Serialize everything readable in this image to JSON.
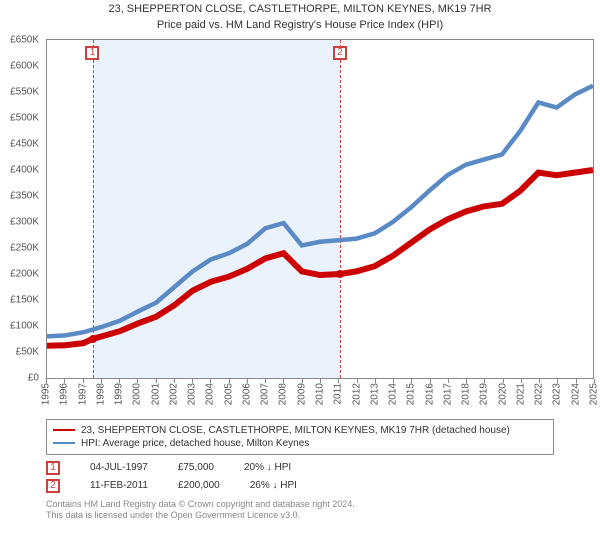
{
  "title": {
    "line1": "23, SHEPPERTON CLOSE, CASTLETHORPE, MILTON KEYNES, MK19 7HR",
    "line2": "Price paid vs. HM Land Registry's House Price Index (HPI)",
    "fontsize": 12,
    "color": "#333333"
  },
  "chart": {
    "type": "line",
    "background_color": "#ffffff",
    "plot_border_color": "#888888",
    "shade_color": "#eaf2fb",
    "shade_from_year": 1997.5,
    "shade_to_year": 2011.1,
    "x": {
      "min": 1995,
      "max": 2025,
      "ticks": [
        1995,
        1996,
        1997,
        1998,
        1999,
        2000,
        2001,
        2002,
        2003,
        2004,
        2005,
        2006,
        2007,
        2008,
        2009,
        2010,
        2011,
        2012,
        2013,
        2014,
        2015,
        2016,
        2017,
        2018,
        2019,
        2020,
        2021,
        2022,
        2023,
        2024,
        2025
      ]
    },
    "y": {
      "min": 0,
      "max": 650000,
      "prefix": "£",
      "suffix": "K",
      "ticks": [
        0,
        50000,
        100000,
        150000,
        200000,
        250000,
        300000,
        350000,
        400000,
        450000,
        500000,
        550000,
        600000,
        650000
      ],
      "label_fontsize": 10
    },
    "series": [
      {
        "id": "property",
        "label": "23, SHEPPERTON CLOSE, CASTLETHORPE, MILTON KEYNES, MK19 7HR (detached house)",
        "color": "#cc0000",
        "width": 2,
        "points": [
          [
            1995,
            62000
          ],
          [
            1996,
            63000
          ],
          [
            1997,
            67000
          ],
          [
            1997.5,
            75000
          ],
          [
            1998,
            80000
          ],
          [
            1999,
            90000
          ],
          [
            2000,
            105000
          ],
          [
            2001,
            118000
          ],
          [
            2002,
            140000
          ],
          [
            2003,
            168000
          ],
          [
            2004,
            185000
          ],
          [
            2005,
            195000
          ],
          [
            2006,
            210000
          ],
          [
            2007,
            230000
          ],
          [
            2008,
            240000
          ],
          [
            2009,
            205000
          ],
          [
            2010,
            198000
          ],
          [
            2011.1,
            200000
          ],
          [
            2012,
            205000
          ],
          [
            2013,
            215000
          ],
          [
            2014,
            235000
          ],
          [
            2015,
            260000
          ],
          [
            2016,
            285000
          ],
          [
            2017,
            305000
          ],
          [
            2018,
            320000
          ],
          [
            2019,
            330000
          ],
          [
            2020,
            335000
          ],
          [
            2021,
            360000
          ],
          [
            2022,
            395000
          ],
          [
            2023,
            390000
          ],
          [
            2024,
            395000
          ],
          [
            2025,
            400000
          ]
        ]
      },
      {
        "id": "hpi",
        "label": "HPI: Average price, detached house, Milton Keynes",
        "color": "#5a8ac6",
        "width": 1.5,
        "points": [
          [
            1995,
            80000
          ],
          [
            1996,
            82000
          ],
          [
            1997,
            88000
          ],
          [
            1998,
            98000
          ],
          [
            1999,
            110000
          ],
          [
            2000,
            128000
          ],
          [
            2001,
            145000
          ],
          [
            2002,
            175000
          ],
          [
            2003,
            205000
          ],
          [
            2004,
            228000
          ],
          [
            2005,
            240000
          ],
          [
            2006,
            258000
          ],
          [
            2007,
            288000
          ],
          [
            2008,
            298000
          ],
          [
            2009,
            255000
          ],
          [
            2010,
            262000
          ],
          [
            2011,
            265000
          ],
          [
            2012,
            268000
          ],
          [
            2013,
            278000
          ],
          [
            2014,
            300000
          ],
          [
            2015,
            328000
          ],
          [
            2016,
            360000
          ],
          [
            2017,
            390000
          ],
          [
            2018,
            410000
          ],
          [
            2019,
            420000
          ],
          [
            2020,
            430000
          ],
          [
            2021,
            475000
          ],
          [
            2022,
            530000
          ],
          [
            2023,
            520000
          ],
          [
            2024,
            545000
          ],
          [
            2025,
            562000
          ]
        ]
      }
    ],
    "sale_markers": [
      {
        "n": "1",
        "year": 1997.5,
        "price": 75000,
        "color": "#cc0000"
      },
      {
        "n": "2",
        "year": 2011.1,
        "price": 200000,
        "color": "#cc0000"
      }
    ],
    "marker_border_color": "#cc4040"
  },
  "legend": {
    "border_color": "#888888",
    "fontsize": 10
  },
  "sales_table": {
    "rows": [
      {
        "n": "1",
        "date": "04-JUL-1997",
        "price": "£75,000",
        "delta": "20% ↓ HPI",
        "color": "#cc4040"
      },
      {
        "n": "2",
        "date": "11-FEB-2011",
        "price": "£200,000",
        "delta": "26% ↓ HPI",
        "color": "#cc4040"
      }
    ]
  },
  "footer": {
    "line1": "Contains HM Land Registry data © Crown copyright and database right 2024.",
    "line2": "This data is licensed under the Open Government Licence v3.0."
  }
}
